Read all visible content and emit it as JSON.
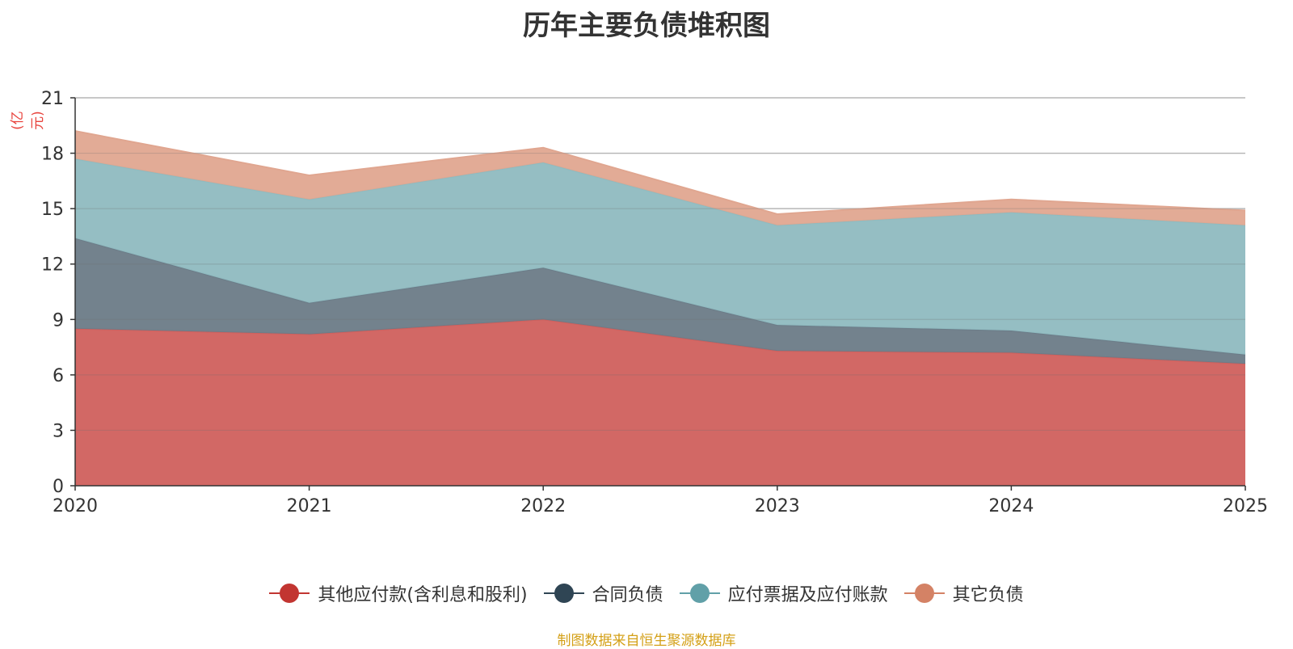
{
  "chart_data": {
    "type": "area",
    "stacked": true,
    "title": "历年主要负债堆积图",
    "ylabel": "(亿元)",
    "xlabel": "",
    "categories": [
      "2020",
      "2021",
      "2022",
      "2023",
      "2024",
      "2025"
    ],
    "ylim": [
      0,
      21
    ],
    "yticks": [
      0,
      3,
      6,
      9,
      12,
      15,
      18,
      21
    ],
    "grid": true,
    "legend_position": "bottom",
    "series": [
      {
        "name": "其他应付款(含利息和股利)",
        "color": "#d0605d",
        "legend_color": "#c23531",
        "values": [
          8.5,
          8.2,
          9.0,
          7.3,
          7.2,
          6.6
        ]
      },
      {
        "name": "合同负债",
        "color": "#6b7b87",
        "legend_color": "#2f4554",
        "values": [
          4.9,
          1.7,
          2.8,
          1.4,
          1.2,
          0.5
        ]
      },
      {
        "name": "应付票据及应付账款",
        "color": "#8fbbc0",
        "legend_color": "#61a0a8",
        "values": [
          4.3,
          5.6,
          5.7,
          5.4,
          6.4,
          7.0
        ]
      },
      {
        "name": "其它负债",
        "color": "#e0a690",
        "legend_color": "#d48265",
        "values": [
          1.5,
          1.3,
          0.8,
          0.6,
          0.7,
          0.8
        ]
      }
    ]
  },
  "source_note": "制图数据来自恒生聚源数据库"
}
